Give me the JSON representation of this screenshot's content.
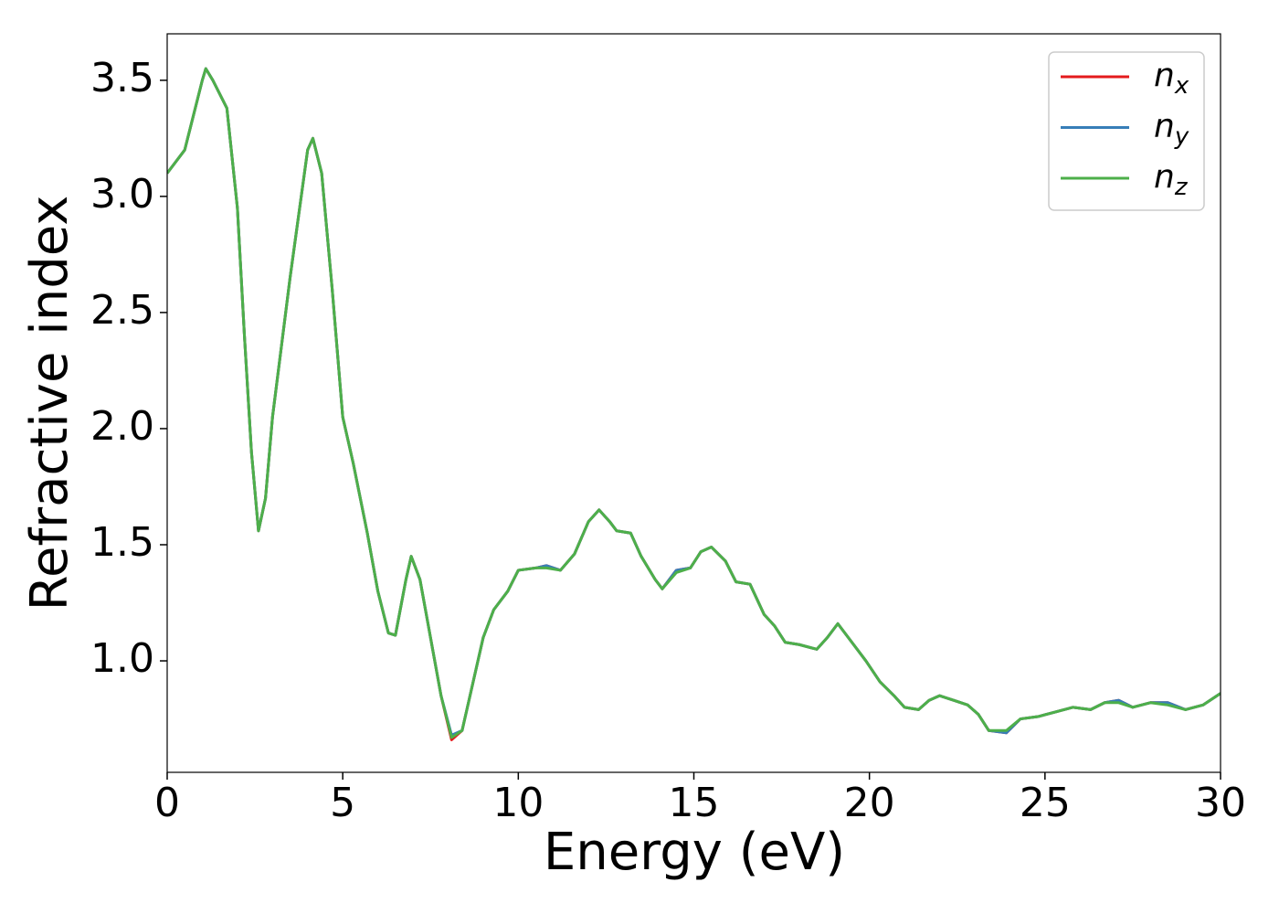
{
  "chart_data": {
    "type": "line",
    "xlabel": "Energy (eV)",
    "ylabel": "Refractive index",
    "x": [
      0,
      0.5,
      1.0,
      1.1,
      1.3,
      1.5,
      1.7,
      2.0,
      2.2,
      2.4,
      2.6,
      2.8,
      3.0,
      3.5,
      4.0,
      4.15,
      4.4,
      4.7,
      5.0,
      5.3,
      5.7,
      6.0,
      6.3,
      6.5,
      6.8,
      6.95,
      7.2,
      7.5,
      7.8,
      8.1,
      8.4,
      8.7,
      9.0,
      9.3,
      9.7,
      10.0,
      10.5,
      10.8,
      11.2,
      11.6,
      12.0,
      12.3,
      12.6,
      12.8,
      13.2,
      13.5,
      13.9,
      14.1,
      14.5,
      14.9,
      15.2,
      15.5,
      15.9,
      16.2,
      16.6,
      17.0,
      17.3,
      17.6,
      18.0,
      18.5,
      18.8,
      19.1,
      19.4,
      19.9,
      20.3,
      20.7,
      21.0,
      21.4,
      21.7,
      22.0,
      22.4,
      22.8,
      23.1,
      23.4,
      23.9,
      24.3,
      24.8,
      25.3,
      25.8,
      26.3,
      26.7,
      27.1,
      27.5,
      28.0,
      28.5,
      29.0,
      29.5,
      30.0
    ],
    "series": [
      {
        "name": "nx",
        "color": "#e41a1c",
        "values": [
          3.1,
          3.2,
          3.5,
          3.55,
          3.5,
          3.44,
          3.38,
          2.95,
          2.4,
          1.9,
          1.56,
          1.7,
          2.05,
          2.65,
          3.2,
          3.25,
          3.1,
          2.6,
          2.05,
          1.85,
          1.55,
          1.3,
          1.12,
          1.11,
          1.35,
          1.45,
          1.35,
          1.1,
          0.85,
          0.66,
          0.7,
          0.9,
          1.1,
          1.22,
          1.3,
          1.39,
          1.4,
          1.41,
          1.39,
          1.46,
          1.6,
          1.65,
          1.6,
          1.56,
          1.55,
          1.45,
          1.35,
          1.31,
          1.39,
          1.4,
          1.47,
          1.49,
          1.43,
          1.34,
          1.33,
          1.2,
          1.15,
          1.08,
          1.07,
          1.05,
          1.1,
          1.16,
          1.1,
          1.0,
          0.91,
          0.85,
          0.8,
          0.79,
          0.83,
          0.85,
          0.83,
          0.81,
          0.77,
          0.7,
          0.69,
          0.75,
          0.76,
          0.78,
          0.8,
          0.79,
          0.82,
          0.83,
          0.8,
          0.82,
          0.82,
          0.79,
          0.81,
          0.86
        ]
      },
      {
        "name": "ny",
        "color": "#377eb8",
        "values": [
          3.1,
          3.2,
          3.5,
          3.55,
          3.5,
          3.44,
          3.38,
          2.95,
          2.4,
          1.9,
          1.56,
          1.7,
          2.05,
          2.65,
          3.2,
          3.25,
          3.1,
          2.6,
          2.05,
          1.85,
          1.55,
          1.3,
          1.12,
          1.11,
          1.35,
          1.45,
          1.35,
          1.1,
          0.85,
          0.68,
          0.7,
          0.9,
          1.1,
          1.22,
          1.3,
          1.39,
          1.4,
          1.41,
          1.39,
          1.46,
          1.6,
          1.65,
          1.6,
          1.56,
          1.55,
          1.45,
          1.35,
          1.31,
          1.39,
          1.4,
          1.47,
          1.49,
          1.43,
          1.34,
          1.33,
          1.2,
          1.15,
          1.08,
          1.07,
          1.05,
          1.1,
          1.16,
          1.1,
          1.0,
          0.91,
          0.85,
          0.8,
          0.79,
          0.83,
          0.85,
          0.83,
          0.81,
          0.77,
          0.7,
          0.69,
          0.75,
          0.76,
          0.78,
          0.8,
          0.79,
          0.82,
          0.83,
          0.8,
          0.82,
          0.82,
          0.79,
          0.81,
          0.86
        ]
      },
      {
        "name": "nz",
        "color": "#4daf4a",
        "values": [
          3.1,
          3.2,
          3.5,
          3.55,
          3.5,
          3.44,
          3.38,
          2.95,
          2.4,
          1.9,
          1.56,
          1.7,
          2.05,
          2.65,
          3.2,
          3.25,
          3.1,
          2.6,
          2.05,
          1.85,
          1.55,
          1.3,
          1.12,
          1.11,
          1.35,
          1.45,
          1.35,
          1.1,
          0.85,
          0.67,
          0.7,
          0.9,
          1.1,
          1.22,
          1.3,
          1.39,
          1.4,
          1.4,
          1.39,
          1.46,
          1.6,
          1.65,
          1.6,
          1.56,
          1.55,
          1.45,
          1.35,
          1.31,
          1.38,
          1.4,
          1.47,
          1.49,
          1.43,
          1.34,
          1.33,
          1.2,
          1.15,
          1.08,
          1.07,
          1.05,
          1.1,
          1.16,
          1.1,
          1.0,
          0.91,
          0.85,
          0.8,
          0.79,
          0.83,
          0.85,
          0.83,
          0.81,
          0.77,
          0.7,
          0.7,
          0.75,
          0.76,
          0.78,
          0.8,
          0.79,
          0.82,
          0.82,
          0.8,
          0.82,
          0.81,
          0.79,
          0.81,
          0.86
        ]
      }
    ],
    "xlim": [
      0,
      30
    ],
    "xticks": [
      0,
      5,
      10,
      15,
      20,
      25,
      30
    ],
    "ylim": [
      0.52,
      3.7
    ],
    "yticks": [
      {
        "value": 1,
        "label": "1.0"
      },
      1.5,
      {
        "value": 2,
        "label": "2.0"
      },
      2.5,
      {
        "value": 3,
        "label": "3.0"
      },
      3.5
    ],
    "grid": false,
    "legend": "upper right"
  }
}
